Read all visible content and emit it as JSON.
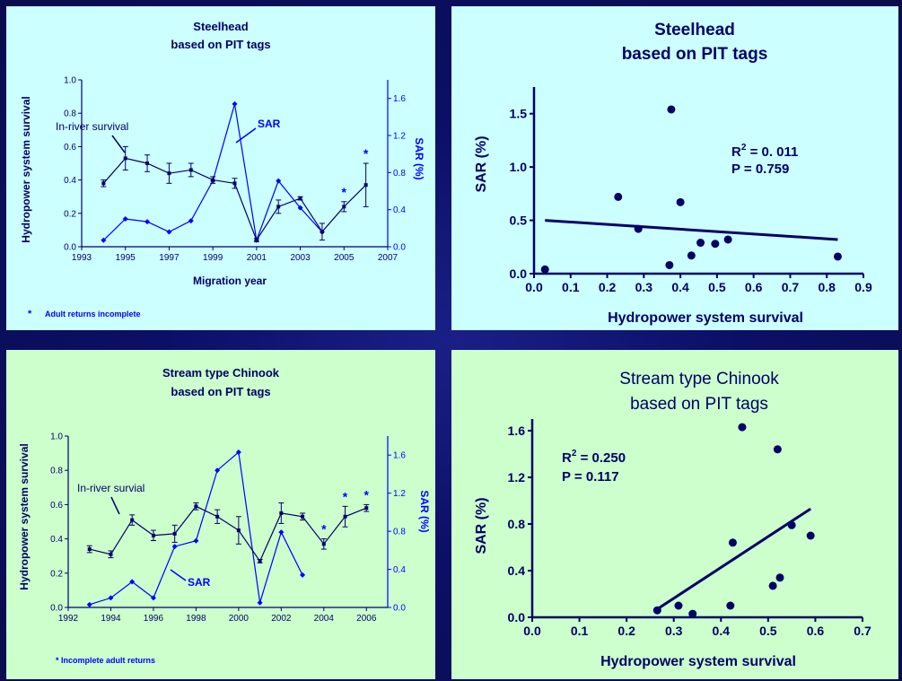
{
  "colors": {
    "panel_top": "#ccffff",
    "panel_bottom": "#ccffcc",
    "dark": "#000066",
    "blue": "#0000ff",
    "border": "#0a0c4e"
  },
  "chart_data": [
    {
      "type": "line",
      "title": "Steelhead",
      "subtitle": "based on PIT tags",
      "xlabel": "Migration year",
      "ylabel": "Hydropower system survival",
      "y2label": "SAR (%)",
      "xlim": [
        1993,
        2007
      ],
      "ylim": [
        0,
        1.0
      ],
      "y2lim": [
        0,
        1.8
      ],
      "xticks": [
        "1993",
        "1995",
        "1997",
        "1999",
        "2001",
        "2003",
        "2005",
        "2007"
      ],
      "yticks": [
        "0.0",
        "0.2",
        "0.4",
        "0.6",
        "0.8",
        "1.0"
      ],
      "y2ticks": [
        "0.0",
        "0.4",
        "0.8",
        "1.2",
        "1.6"
      ],
      "survival": {
        "name": "In-river survival",
        "x": [
          1994,
          1995,
          1996,
          1997,
          1998,
          1999,
          2000,
          2001,
          2002,
          2003,
          2004,
          2005,
          2006
        ],
        "y": [
          0.38,
          0.53,
          0.5,
          0.44,
          0.46,
          0.4,
          0.38,
          0.04,
          0.24,
          0.29,
          0.09,
          0.24,
          0.37
        ],
        "err": [
          0.02,
          0.07,
          0.05,
          0.06,
          0.04,
          0.02,
          0.03,
          0.01,
          0.04,
          0.01,
          0.05,
          0.03,
          0.13
        ]
      },
      "sar": {
        "name": "SAR",
        "x": [
          1994,
          1995,
          1996,
          1997,
          1998,
          1999,
          2000,
          2001,
          2002,
          2003,
          2004
        ],
        "y": [
          0.07,
          0.3,
          0.27,
          0.16,
          0.28,
          0.71,
          1.54,
          0.07,
          0.71,
          0.42,
          0.16
        ]
      },
      "incomplete_years": [
        2005,
        2006
      ],
      "annotations": {
        "inriver": "In-river survival",
        "sar": "SAR",
        "star": "*"
      },
      "footnote": "Adult returns incomplete"
    },
    {
      "type": "scatter",
      "title": "Steelhead",
      "subtitle": "based on PIT tags",
      "xlabel": "Hydropower system survival",
      "ylabel": "SAR (%)",
      "xlim": [
        0.0,
        0.9
      ],
      "ylim": [
        0.0,
        1.75
      ],
      "xticks": [
        "0.0",
        "0.1",
        "0.2",
        "0.3",
        "0.4",
        "0.5",
        "0.6",
        "0.7",
        "0.8",
        "0.9"
      ],
      "yticks": [
        "0.0",
        "0.5",
        "1.0",
        "1.5"
      ],
      "points": {
        "x": [
          0.03,
          0.23,
          0.285,
          0.37,
          0.375,
          0.4,
          0.43,
          0.455,
          0.495,
          0.53,
          0.83
        ],
        "y": [
          0.04,
          0.72,
          0.42,
          0.08,
          1.54,
          0.67,
          0.17,
          0.29,
          0.28,
          0.32,
          0.16
        ]
      },
      "fit": {
        "x": [
          0.03,
          0.83
        ],
        "y": [
          0.5,
          0.32
        ]
      },
      "r2_label": "R",
      "r2_value": " = 0. 011",
      "p_label": "P = 0.759"
    },
    {
      "type": "line",
      "title": "Stream type Chinook",
      "subtitle": "based on PIT tags",
      "xlabel": "",
      "ylabel": "Hydropower system survival",
      "y2label": "SAR (%)",
      "xlim": [
        1992,
        2007
      ],
      "ylim": [
        0,
        1.0
      ],
      "y2lim": [
        0,
        1.8
      ],
      "xticks": [
        "1992",
        "1994",
        "1996",
        "1998",
        "2000",
        "2002",
        "2004",
        "2006"
      ],
      "yticks": [
        "0.0",
        "0.2",
        "0.4",
        "0.6",
        "0.8",
        "1.0"
      ],
      "y2ticks": [
        "0.0",
        "0.4",
        "0.8",
        "1.2",
        "1.6"
      ],
      "survival": {
        "name": "In-river survival",
        "x": [
          1993,
          1994,
          1995,
          1996,
          1997,
          1998,
          1999,
          2000,
          2001,
          2002,
          2003,
          2004,
          2005,
          2006
        ],
        "y": [
          0.34,
          0.31,
          0.51,
          0.42,
          0.43,
          0.59,
          0.53,
          0.45,
          0.27,
          0.55,
          0.53,
          0.37,
          0.53,
          0.58
        ],
        "err": [
          0.02,
          0.02,
          0.03,
          0.03,
          0.05,
          0.02,
          0.04,
          0.08,
          0.01,
          0.06,
          0.02,
          0.03,
          0.06,
          0.02
        ]
      },
      "sar": {
        "name": "SAR",
        "x": [
          1993,
          1994,
          1995,
          1996,
          1997,
          1998,
          1999,
          2000,
          2001,
          2002,
          2003
        ],
        "y": [
          0.03,
          0.1,
          0.27,
          0.1,
          0.64,
          0.7,
          1.44,
          1.63,
          0.05,
          0.79,
          0.34
        ]
      },
      "incomplete_years": [
        2004,
        2005,
        2006
      ],
      "annotations": {
        "inriver": "In-river survial",
        "sar": "SAR",
        "star": "*"
      },
      "footnote": "* Incomplete adult returns"
    },
    {
      "type": "scatter",
      "title": "Stream type Chinook",
      "subtitle": "based on PIT tags",
      "xlabel": "Hydropower system survival",
      "ylabel": "SAR (%)",
      "xlim": [
        0.0,
        0.7
      ],
      "ylim": [
        0.0,
        1.7
      ],
      "xticks": [
        "0.0",
        "0.1",
        "0.2",
        "0.3",
        "0.4",
        "0.5",
        "0.6",
        "0.7"
      ],
      "yticks": [
        "0.0",
        "0.4",
        "0.8",
        "1.2",
        "1.6"
      ],
      "points": {
        "x": [
          0.265,
          0.31,
          0.34,
          0.42,
          0.425,
          0.445,
          0.51,
          0.52,
          0.525,
          0.55,
          0.59
        ],
        "y": [
          0.06,
          0.1,
          0.03,
          0.1,
          0.64,
          1.63,
          0.27,
          1.44,
          0.34,
          0.79,
          0.7
        ]
      },
      "fit": {
        "x": [
          0.265,
          0.59
        ],
        "y": [
          0.07,
          0.93
        ]
      },
      "r2_label": "R",
      "r2_value": " = 0.250",
      "p_label": "P = 0.117"
    }
  ]
}
